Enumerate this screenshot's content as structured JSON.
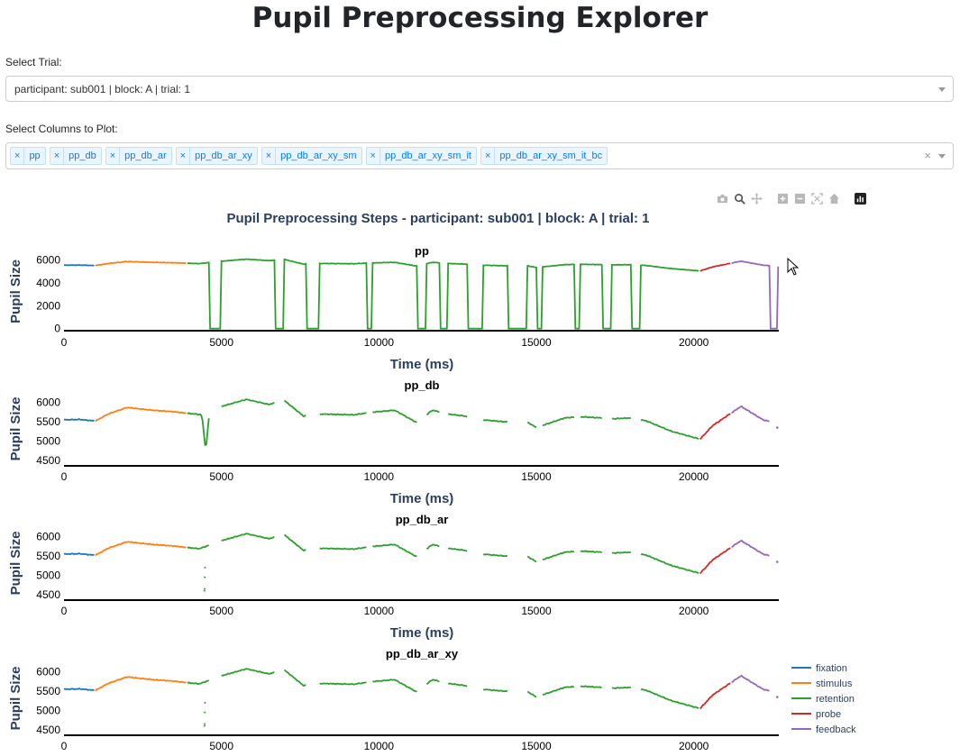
{
  "app": {
    "title": "Pupil Preprocessing Explorer"
  },
  "trial_select": {
    "label": "Select Trial:",
    "value": "participant: sub001 | block: A | trial: 1"
  },
  "columns_select": {
    "label": "Select Columns to Plot:",
    "chips": [
      {
        "remove": "×",
        "label": "pp"
      },
      {
        "remove": "×",
        "label": "pp_db"
      },
      {
        "remove": "×",
        "label": "pp_db_ar"
      },
      {
        "remove": "×",
        "label": "pp_db_ar_xy"
      },
      {
        "remove": "×",
        "label": "pp_db_ar_xy_sm"
      },
      {
        "remove": "×",
        "label": "pp_db_ar_xy_sm_it"
      },
      {
        "remove": "×",
        "label": "pp_db_ar_xy_sm_it_bc"
      }
    ],
    "clear": "×"
  },
  "modebar": {
    "icons": [
      "camera-icon",
      "zoom-icon",
      "pan-icon",
      "zoom-in-icon",
      "zoom-out-icon",
      "autoscale-icon",
      "reset-axes-icon",
      "plotly-logo-icon"
    ]
  },
  "chart_data": {
    "type": "line",
    "title": "Pupil Preprocessing Steps - participant: sub001 | block: A | trial: 1",
    "xlabel": "Time (ms)",
    "ylabel": "Pupil Size",
    "xlim": [
      0,
      22700
    ],
    "xticks": [
      0,
      5000,
      10000,
      15000,
      20000
    ],
    "xtick_labels": [
      "0",
      "5000",
      "10000",
      "15000",
      "20000"
    ],
    "legend": [
      {
        "name": "fixation",
        "color": "#1f77b4"
      },
      {
        "name": "stimulus",
        "color": "#ff7f0e"
      },
      {
        "name": "retention",
        "color": "#2ca02c"
      },
      {
        "name": "probe",
        "color": "#d62728"
      },
      {
        "name": "feedback",
        "color": "#9467bd"
      }
    ],
    "legend_position": "bottom-right",
    "phases": [
      {
        "name": "fixation",
        "start": 0,
        "end": 1000
      },
      {
        "name": "stimulus",
        "start": 1000,
        "end": 3900
      },
      {
        "name": "retention",
        "start": 3900,
        "end": 20200
      },
      {
        "name": "probe",
        "start": 20200,
        "end": 21200
      },
      {
        "name": "feedback",
        "start": 21200,
        "end": 22700
      }
    ],
    "base_trace": [
      [
        0,
        5550
      ],
      [
        500,
        5560
      ],
      [
        1000,
        5520
      ],
      [
        1400,
        5700
      ],
      [
        2000,
        5870
      ],
      [
        2800,
        5800
      ],
      [
        3500,
        5760
      ],
      [
        3900,
        5720
      ],
      [
        4300,
        5690
      ],
      [
        5000,
        5900
      ],
      [
        5800,
        6080
      ],
      [
        6500,
        5950
      ],
      [
        7000,
        6050
      ],
      [
        7600,
        5650
      ],
      [
        8200,
        5700
      ],
      [
        9200,
        5680
      ],
      [
        9800,
        5750
      ],
      [
        10500,
        5800
      ],
      [
        11200,
        5480
      ],
      [
        11700,
        5800
      ],
      [
        12200,
        5700
      ],
      [
        12700,
        5650
      ],
      [
        13300,
        5550
      ],
      [
        14000,
        5500
      ],
      [
        14600,
        5550
      ],
      [
        15000,
        5350
      ],
      [
        15900,
        5600
      ],
      [
        16400,
        5630
      ],
      [
        17500,
        5580
      ],
      [
        18000,
        5600
      ],
      [
        18500,
        5520
      ],
      [
        19300,
        5250
      ],
      [
        20200,
        5050
      ],
      [
        20600,
        5400
      ],
      [
        21500,
        5900
      ],
      [
        22200,
        5550
      ],
      [
        22700,
        5450
      ]
    ],
    "gaps": [
      [
        4600,
        5000
      ],
      [
        6700,
        7000
      ],
      [
        7700,
        8100
      ],
      [
        9600,
        9800
      ],
      [
        11200,
        11500
      ],
      [
        11950,
        12200
      ],
      [
        12800,
        13300
      ],
      [
        14100,
        14700
      ],
      [
        15000,
        15200
      ],
      [
        16200,
        16400
      ],
      [
        17100,
        17400
      ],
      [
        18000,
        18300
      ],
      [
        22400,
        22650
      ]
    ],
    "panels": [
      {
        "name": "pp",
        "ylim": [
          -100,
          6600
        ],
        "yticks": [
          0,
          2000,
          4000,
          6000
        ],
        "ytick_labels": [
          "0",
          "2000",
          "4000",
          "6000"
        ]
      },
      {
        "name": "pp_db",
        "ylim": [
          4380,
          6250
        ],
        "yticks": [
          4500,
          5000,
          5500,
          6000
        ],
        "ytick_labels": [
          "4500",
          "5000",
          "5500",
          "6000"
        ]
      },
      {
        "name": "pp_db_ar",
        "ylim": [
          4380,
          6250
        ],
        "yticks": [
          4500,
          5000,
          5500,
          6000
        ],
        "ytick_labels": [
          "4500",
          "5000",
          "5500",
          "6000"
        ]
      },
      {
        "name": "pp_db_ar_xy",
        "ylim": [
          4380,
          6250
        ],
        "yticks": [
          4500,
          5000,
          5500,
          6000
        ],
        "ytick_labels": [
          "4500",
          "5000",
          "5500",
          "6000"
        ]
      }
    ]
  }
}
